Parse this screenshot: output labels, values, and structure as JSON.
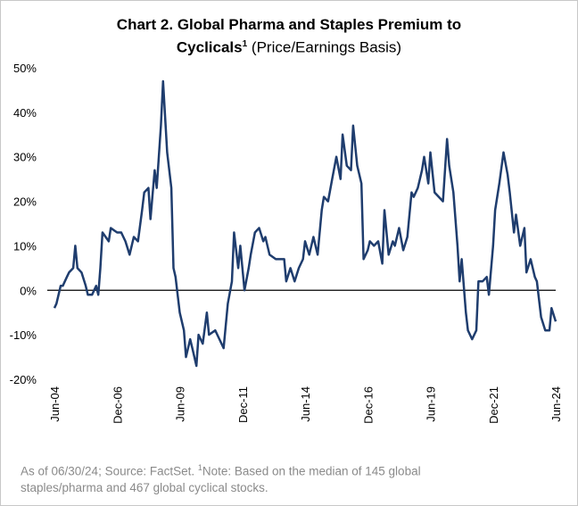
{
  "chart_data": {
    "type": "line",
    "title": "Chart 2. Global Pharma and Staples Premium to Cyclicals",
    "title_superscript": "1",
    "subtitle": "(Price/Earnings Basis)",
    "footnote": {
      "source": "As of 06/30/24; Source: FactSet.",
      "marker": "1",
      "note": "Note: Based on the median of 145 global staples/pharma and 467 global cyclical stocks."
    },
    "x": [
      "2004-06",
      "2004-07",
      "2004-09",
      "2004-10",
      "2004-12",
      "2005-01",
      "2005-03",
      "2005-04",
      "2005-05",
      "2005-07",
      "2005-09",
      "2005-10",
      "2005-12",
      "2006-02",
      "2006-03",
      "2006-04",
      "2006-05",
      "2006-08",
      "2006-09",
      "2006-12",
      "2007-02",
      "2007-04",
      "2007-06",
      "2007-08",
      "2007-10",
      "2007-12",
      "2008-01",
      "2008-03",
      "2008-04",
      "2008-06",
      "2008-07",
      "2008-09",
      "2008-10",
      "2008-12",
      "2009-02",
      "2009-03",
      "2009-04",
      "2009-06",
      "2009-08",
      "2009-09",
      "2009-11",
      "2009-12",
      "2010-02",
      "2010-03",
      "2010-05",
      "2010-07",
      "2010-08",
      "2010-11",
      "2011-01",
      "2011-03",
      "2011-05",
      "2011-07",
      "2011-08",
      "2011-10",
      "2011-11",
      "2012-01",
      "2012-03",
      "2012-04",
      "2012-06",
      "2012-08",
      "2012-10",
      "2012-11",
      "2013-01",
      "2013-04",
      "2013-06",
      "2013-08",
      "2013-09",
      "2013-11",
      "2014-01",
      "2014-03",
      "2014-05",
      "2014-06",
      "2014-08",
      "2014-10",
      "2014-12",
      "2015-02",
      "2015-03",
      "2015-05",
      "2015-07",
      "2015-09",
      "2015-11",
      "2015-12",
      "2016-02",
      "2016-04",
      "2016-05",
      "2016-07",
      "2016-09",
      "2016-10",
      "2016-12",
      "2017-01",
      "2017-03",
      "2017-05",
      "2017-07",
      "2017-08",
      "2017-10",
      "2017-12",
      "2018-01",
      "2018-03",
      "2018-05",
      "2018-07",
      "2018-09",
      "2018-10",
      "2018-12",
      "2019-02",
      "2019-03",
      "2019-05",
      "2019-06",
      "2019-08",
      "2019-10",
      "2019-12",
      "2020-02",
      "2020-03",
      "2020-05",
      "2020-07",
      "2020-08",
      "2020-09",
      "2020-11",
      "2020-12",
      "2021-02",
      "2021-04",
      "2021-05",
      "2021-07",
      "2021-09",
      "2021-10",
      "2021-12",
      "2022-01",
      "2022-03",
      "2022-05",
      "2022-07",
      "2022-08",
      "2022-10",
      "2022-11",
      "2023-01",
      "2023-03",
      "2023-04",
      "2023-06",
      "2023-08",
      "2023-09",
      "2023-11",
      "2024-01",
      "2024-03",
      "2024-04",
      "2024-06"
    ],
    "series": [
      {
        "name": "Premium",
        "color": "#1f3d6e",
        "values": [
          -4,
          -3,
          1,
          1,
          3,
          4,
          5,
          10,
          5,
          4,
          1,
          -1,
          -1,
          1,
          -1,
          5,
          13,
          11,
          14,
          13,
          13,
          11,
          8,
          12,
          11,
          18,
          22,
          23,
          16,
          27,
          23,
          37,
          47,
          31,
          23,
          5,
          3,
          -5,
          -9,
          -15,
          -11,
          -13,
          -17,
          -10,
          -12,
          -5,
          -10,
          -9,
          -11,
          -13,
          -3,
          2,
          13,
          5,
          10,
          0,
          5,
          8,
          13,
          14,
          11,
          12,
          8,
          7,
          7,
          7,
          2,
          5,
          2,
          5,
          7,
          11,
          8,
          12,
          8,
          18,
          21,
          20,
          25,
          30,
          25,
          35,
          28,
          27,
          37,
          28,
          24,
          7,
          9,
          11,
          10,
          11,
          6,
          18,
          8,
          11,
          10,
          14,
          9,
          12,
          22,
          21,
          23,
          27,
          30,
          24,
          31,
          22,
          21,
          20,
          34,
          28,
          22,
          10,
          2,
          7,
          -5,
          -9,
          -11,
          -9,
          2,
          2,
          3,
          -1,
          10,
          18,
          24,
          31,
          26,
          22,
          13,
          17,
          10,
          14,
          4,
          7,
          3,
          2,
          -6,
          -9,
          -9,
          -4,
          -7
        ]
      }
    ],
    "xlim": [
      "2004-06",
      "2024-06"
    ],
    "xticks": [
      {
        "value": "2004-06",
        "label": "Jun-04"
      },
      {
        "value": "2006-12",
        "label": "Dec-06"
      },
      {
        "value": "2009-06",
        "label": "Jun-09"
      },
      {
        "value": "2011-12",
        "label": "Dec-11"
      },
      {
        "value": "2014-06",
        "label": "Jun-14"
      },
      {
        "value": "2016-12",
        "label": "Dec-16"
      },
      {
        "value": "2019-06",
        "label": "Jun-19"
      },
      {
        "value": "2021-12",
        "label": "Dec-21"
      },
      {
        "value": "2024-06",
        "label": "Jun-24"
      }
    ],
    "ylim": [
      -20,
      50
    ],
    "yticks": [
      {
        "value": -20,
        "label": "-20%"
      },
      {
        "value": -10,
        "label": "-10%"
      },
      {
        "value": 0,
        "label": "0%"
      },
      {
        "value": 10,
        "label": "10%"
      },
      {
        "value": 20,
        "label": "20%"
      },
      {
        "value": 30,
        "label": "30%"
      },
      {
        "value": 40,
        "label": "40%"
      },
      {
        "value": 50,
        "label": "50%"
      }
    ],
    "zero_line": true,
    "grid": false
  }
}
